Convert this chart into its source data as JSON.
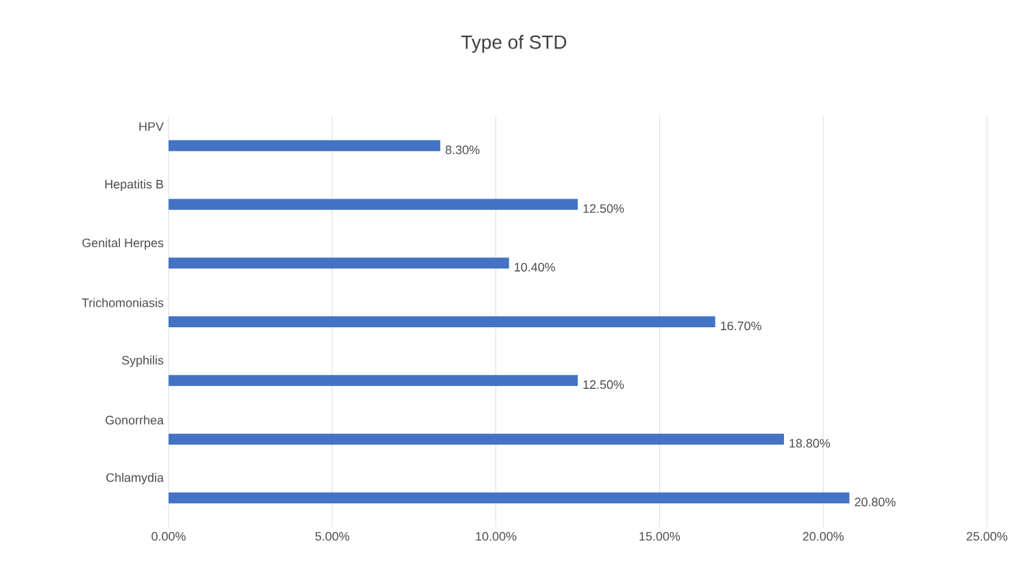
{
  "chart_data": {
    "type": "bar",
    "orientation": "horizontal",
    "title": "Type of STD",
    "categories": [
      "HPV",
      "Hepatitis B",
      "Genital Herpes",
      "Trichomoniasis",
      "Syphilis",
      "Gonorrhea",
      "Chlamydia"
    ],
    "values": [
      8.3,
      12.5,
      10.4,
      16.7,
      12.5,
      18.8,
      20.8
    ],
    "value_labels": [
      "8.30%",
      "12.50%",
      "10.40%",
      "16.70%",
      "12.50%",
      "18.80%",
      "20.80%"
    ],
    "color": "#4472c4",
    "xlim": [
      0,
      25
    ],
    "xticks": [
      {
        "value": 0,
        "label": "0.00%"
      },
      {
        "value": 5,
        "label": "5.00%"
      },
      {
        "value": 10,
        "label": "10.00%"
      },
      {
        "value": 15,
        "label": "15.00%"
      },
      {
        "value": 20,
        "label": "20.00%"
      },
      {
        "value": 25,
        "label": "25.00%"
      }
    ],
    "grid": "x"
  }
}
